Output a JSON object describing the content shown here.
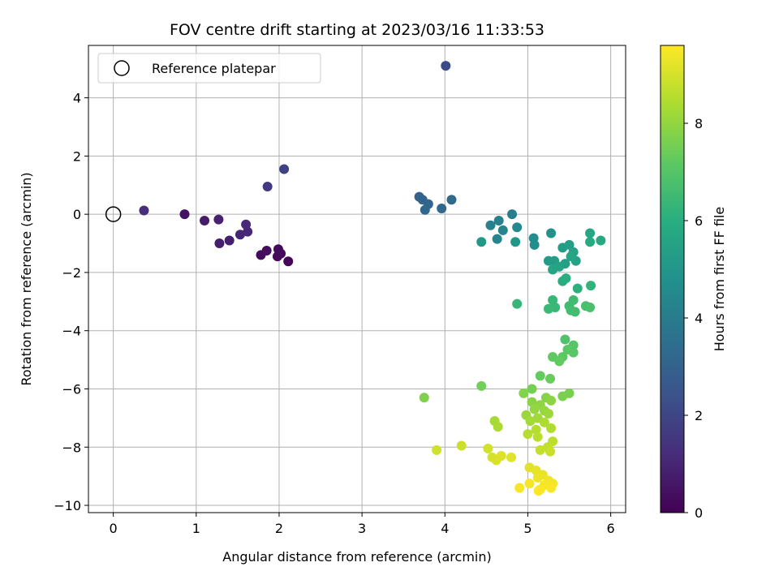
{
  "chart_data": {
    "type": "scatter",
    "title": "FOV centre drift starting at 2023/03/16 11:33:53",
    "xlabel": "Angular distance from reference (arcmin)",
    "ylabel": "Rotation from reference (arcmin)",
    "xlim": [
      -0.3,
      6.18
    ],
    "ylim": [
      -10.25,
      5.8
    ],
    "xticks": [
      0,
      1,
      2,
      3,
      4,
      5,
      6
    ],
    "xtick_labels": [
      "0",
      "1",
      "2",
      "3",
      "4",
      "5",
      "6"
    ],
    "yticks": [
      4,
      2,
      0,
      -2,
      -4,
      -6,
      -8,
      -10
    ],
    "ytick_labels": [
      "4",
      "2",
      "0",
      "−2",
      "−4",
      "−6",
      "−8",
      "−10"
    ],
    "grid": true,
    "legend": {
      "position": "top-left",
      "entries": [
        "Reference platepar"
      ]
    },
    "reference_point": {
      "x": 0,
      "y": 0,
      "marker": "open-circle"
    },
    "colorbar": {
      "label": "Hours from first FF file",
      "colormap": "viridis",
      "range": [
        0,
        9.6
      ],
      "ticks": [
        0,
        2,
        4,
        6,
        8
      ],
      "tick_labels": [
        "0",
        "2",
        "4",
        "6",
        "8"
      ]
    },
    "points": [
      {
        "x": 2.11,
        "y": -1.62,
        "h": 0.1
      },
      {
        "x": 2.02,
        "y": -1.35,
        "h": 0.15
      },
      {
        "x": 1.98,
        "y": -1.45,
        "h": 0.2
      },
      {
        "x": 1.99,
        "y": -1.2,
        "h": 0.25
      },
      {
        "x": 1.78,
        "y": -1.4,
        "h": 0.3
      },
      {
        "x": 1.85,
        "y": -1.25,
        "h": 0.35
      },
      {
        "x": 0.86,
        "y": 0.0,
        "h": 0.5
      },
      {
        "x": 1.1,
        "y": -0.22,
        "h": 0.7
      },
      {
        "x": 1.28,
        "y": -1.0,
        "h": 0.8
      },
      {
        "x": 1.4,
        "y": -0.9,
        "h": 0.85
      },
      {
        "x": 1.27,
        "y": -0.18,
        "h": 0.9
      },
      {
        "x": 1.53,
        "y": -0.7,
        "h": 1.0
      },
      {
        "x": 1.62,
        "y": -0.6,
        "h": 1.05
      },
      {
        "x": 1.6,
        "y": -0.35,
        "h": 1.1
      },
      {
        "x": 0.37,
        "y": 0.13,
        "h": 1.25
      },
      {
        "x": 1.86,
        "y": 0.95,
        "h": 1.6
      },
      {
        "x": 2.06,
        "y": 1.55,
        "h": 1.8
      },
      {
        "x": 4.01,
        "y": 5.1,
        "h": 2.2
      },
      {
        "x": 3.69,
        "y": 0.6,
        "h": 3.0
      },
      {
        "x": 3.73,
        "y": 0.5,
        "h": 3.05
      },
      {
        "x": 3.8,
        "y": 0.35,
        "h": 3.1
      },
      {
        "x": 3.76,
        "y": 0.15,
        "h": 3.2
      },
      {
        "x": 3.96,
        "y": 0.2,
        "h": 3.25
      },
      {
        "x": 4.08,
        "y": 0.5,
        "h": 3.3
      },
      {
        "x": 4.81,
        "y": 0.0,
        "h": 4.1
      },
      {
        "x": 4.65,
        "y": -0.22,
        "h": 4.2
      },
      {
        "x": 4.55,
        "y": -0.38,
        "h": 4.25
      },
      {
        "x": 4.7,
        "y": -0.55,
        "h": 4.3
      },
      {
        "x": 4.63,
        "y": -0.85,
        "h": 4.35
      },
      {
        "x": 4.87,
        "y": -0.45,
        "h": 4.5
      },
      {
        "x": 5.07,
        "y": -0.82,
        "h": 4.6
      },
      {
        "x": 5.08,
        "y": -1.05,
        "h": 4.7
      },
      {
        "x": 5.28,
        "y": -0.65,
        "h": 4.8
      },
      {
        "x": 4.85,
        "y": -0.95,
        "h": 5.0
      },
      {
        "x": 4.44,
        "y": -0.95,
        "h": 5.1
      },
      {
        "x": 5.25,
        "y": -1.6,
        "h": 5.2
      },
      {
        "x": 5.32,
        "y": -1.6,
        "h": 5.25
      },
      {
        "x": 5.42,
        "y": -1.15,
        "h": 5.3
      },
      {
        "x": 5.5,
        "y": -1.05,
        "h": 5.35
      },
      {
        "x": 5.45,
        "y": -1.7,
        "h": 5.4
      },
      {
        "x": 5.55,
        "y": -1.3,
        "h": 5.45
      },
      {
        "x": 5.58,
        "y": -1.6,
        "h": 5.5
      },
      {
        "x": 5.38,
        "y": -1.8,
        "h": 5.55
      },
      {
        "x": 5.3,
        "y": -1.9,
        "h": 5.6
      },
      {
        "x": 5.52,
        "y": -1.45,
        "h": 5.65
      },
      {
        "x": 5.75,
        "y": -0.65,
        "h": 5.7
      },
      {
        "x": 5.88,
        "y": -0.9,
        "h": 5.75
      },
      {
        "x": 5.75,
        "y": -0.95,
        "h": 5.8
      },
      {
        "x": 5.42,
        "y": -2.3,
        "h": 5.9
      },
      {
        "x": 5.46,
        "y": -2.2,
        "h": 6.0
      },
      {
        "x": 5.6,
        "y": -2.55,
        "h": 6.1
      },
      {
        "x": 5.76,
        "y": -2.45,
        "h": 6.2
      },
      {
        "x": 4.87,
        "y": -3.08,
        "h": 6.3
      },
      {
        "x": 5.3,
        "y": -2.95,
        "h": 6.35
      },
      {
        "x": 5.33,
        "y": -3.2,
        "h": 6.4
      },
      {
        "x": 5.25,
        "y": -3.25,
        "h": 6.45
      },
      {
        "x": 5.5,
        "y": -3.15,
        "h": 6.5
      },
      {
        "x": 5.55,
        "y": -2.95,
        "h": 6.55
      },
      {
        "x": 5.57,
        "y": -3.35,
        "h": 6.6
      },
      {
        "x": 5.52,
        "y": -3.3,
        "h": 6.65
      },
      {
        "x": 5.7,
        "y": -3.15,
        "h": 6.7
      },
      {
        "x": 5.75,
        "y": -3.2,
        "h": 6.75
      },
      {
        "x": 5.45,
        "y": -4.3,
        "h": 6.9
      },
      {
        "x": 5.55,
        "y": -4.5,
        "h": 7.0
      },
      {
        "x": 5.55,
        "y": -4.75,
        "h": 7.05
      },
      {
        "x": 5.48,
        "y": -4.65,
        "h": 7.1
      },
      {
        "x": 5.42,
        "y": -4.9,
        "h": 7.15
      },
      {
        "x": 5.3,
        "y": -4.9,
        "h": 7.2
      },
      {
        "x": 5.38,
        "y": -5.05,
        "h": 7.25
      },
      {
        "x": 5.15,
        "y": -5.55,
        "h": 7.3
      },
      {
        "x": 5.27,
        "y": -5.65,
        "h": 7.35
      },
      {
        "x": 4.44,
        "y": -5.9,
        "h": 7.5
      },
      {
        "x": 5.05,
        "y": -6.0,
        "h": 7.55
      },
      {
        "x": 5.5,
        "y": -6.15,
        "h": 7.6
      },
      {
        "x": 5.42,
        "y": -6.25,
        "h": 7.65
      },
      {
        "x": 3.75,
        "y": -6.3,
        "h": 7.7
      },
      {
        "x": 4.95,
        "y": -6.15,
        "h": 7.75
      },
      {
        "x": 5.22,
        "y": -6.3,
        "h": 7.8
      },
      {
        "x": 5.05,
        "y": -6.45,
        "h": 7.85
      },
      {
        "x": 5.28,
        "y": -6.4,
        "h": 7.9
      },
      {
        "x": 5.15,
        "y": -6.55,
        "h": 7.95
      },
      {
        "x": 5.08,
        "y": -6.7,
        "h": 8.0
      },
      {
        "x": 5.2,
        "y": -6.75,
        "h": 8.05
      },
      {
        "x": 4.98,
        "y": -6.9,
        "h": 8.1
      },
      {
        "x": 5.25,
        "y": -6.85,
        "h": 8.15
      },
      {
        "x": 5.12,
        "y": -7.0,
        "h": 8.2
      },
      {
        "x": 5.03,
        "y": -7.1,
        "h": 8.25
      },
      {
        "x": 4.6,
        "y": -7.1,
        "h": 8.3
      },
      {
        "x": 4.64,
        "y": -7.3,
        "h": 8.35
      },
      {
        "x": 5.2,
        "y": -7.15,
        "h": 8.4
      },
      {
        "x": 5.28,
        "y": -7.35,
        "h": 8.45
      },
      {
        "x": 5.1,
        "y": -7.4,
        "h": 8.5
      },
      {
        "x": 5.0,
        "y": -7.55,
        "h": 8.55
      },
      {
        "x": 5.12,
        "y": -7.65,
        "h": 8.6
      },
      {
        "x": 5.3,
        "y": -7.8,
        "h": 8.65
      },
      {
        "x": 5.24,
        "y": -8.0,
        "h": 8.7
      },
      {
        "x": 5.15,
        "y": -8.1,
        "h": 8.75
      },
      {
        "x": 5.27,
        "y": -8.15,
        "h": 8.8
      },
      {
        "x": 4.2,
        "y": -7.95,
        "h": 8.85
      },
      {
        "x": 3.9,
        "y": -8.1,
        "h": 8.9
      },
      {
        "x": 4.52,
        "y": -8.05,
        "h": 8.95
      },
      {
        "x": 4.57,
        "y": -8.35,
        "h": 9.0
      },
      {
        "x": 4.62,
        "y": -8.45,
        "h": 9.05
      },
      {
        "x": 4.68,
        "y": -8.3,
        "h": 9.1
      },
      {
        "x": 4.8,
        "y": -8.35,
        "h": 9.15
      },
      {
        "x": 5.02,
        "y": -8.7,
        "h": 9.2
      },
      {
        "x": 5.1,
        "y": -8.8,
        "h": 9.25
      },
      {
        "x": 5.18,
        "y": -8.95,
        "h": 9.3
      },
      {
        "x": 5.12,
        "y": -9.05,
        "h": 9.35
      },
      {
        "x": 5.25,
        "y": -9.15,
        "h": 9.4
      },
      {
        "x": 5.3,
        "y": -9.25,
        "h": 9.45
      },
      {
        "x": 5.2,
        "y": -9.3,
        "h": 9.48
      },
      {
        "x": 5.02,
        "y": -9.25,
        "h": 9.5
      },
      {
        "x": 4.9,
        "y": -9.4,
        "h": 9.52
      },
      {
        "x": 5.15,
        "y": -9.45,
        "h": 9.55
      },
      {
        "x": 5.28,
        "y": -9.4,
        "h": 9.57
      },
      {
        "x": 5.13,
        "y": -9.5,
        "h": 9.6
      }
    ]
  }
}
